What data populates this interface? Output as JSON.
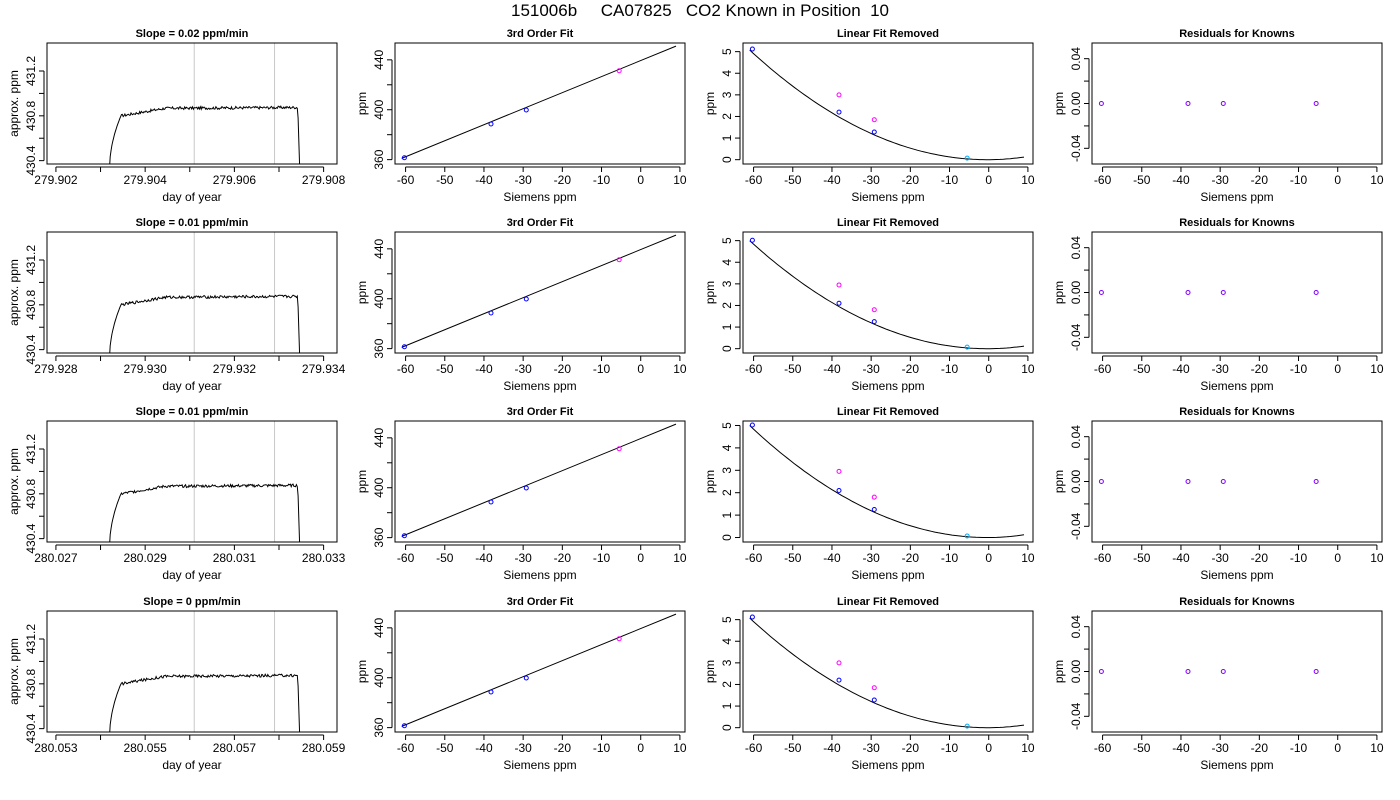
{
  "figure": {
    "title": "151006b     CA07825   CO2 Known in Position  10"
  },
  "chart_data": [
    {
      "type": "line",
      "panel": "time-series",
      "title": "Slope =  0.02  ppm/min",
      "xlabel": "day of year",
      "ylabel": "approx. ppm",
      "xlim": [
        279.9018,
        279.9083
      ],
      "ylim": [
        430.37,
        431.45
      ],
      "xticks": [
        279.902,
        279.903,
        279.904,
        279.905,
        279.906,
        279.907,
        279.908
      ],
      "xtick_labels": [
        "279.902",
        "",
        "279.904",
        "",
        "279.906",
        "",
        "279.908"
      ],
      "yticks": [
        430.4,
        430.6,
        430.8,
        431.0,
        431.2
      ],
      "ytick_labels": [
        "430.4",
        "",
        "430.8",
        "",
        "431.2"
      ],
      "vlines": [
        279.9051,
        279.9069
      ],
      "line_color": "#000000",
      "vline_color": "#c8c8c8"
    },
    {
      "type": "scatter",
      "panel": "fit",
      "title": "3rd Order Fit",
      "xlabel": "Siemens ppm",
      "ylabel": "ppm",
      "xlim": [
        -62.7,
        11.3
      ],
      "ylim": [
        356.5,
        453.5
      ],
      "xticks": [
        -60,
        -50,
        -40,
        -30,
        -20,
        -10,
        0,
        10
      ],
      "xtick_labels": [
        "-60",
        "-50",
        "-40",
        "-30",
        "-20",
        "-10",
        "0",
        "10"
      ],
      "yticks": [
        360,
        380,
        400,
        420,
        440
      ],
      "ytick_labels": [
        "360",
        "",
        "400",
        "",
        "440"
      ],
      "line": {
        "x": [
          -61,
          9
        ],
        "y": [
          361,
          451
        ]
      },
      "points": [
        {
          "x": -60.3,
          "y": 361.5,
          "color": "#0000ff"
        },
        {
          "x": -38.2,
          "y": 388.6,
          "color": "#0000ff"
        },
        {
          "x": -29.2,
          "y": 399.8,
          "color": "#0000ff"
        },
        {
          "x": -5.5,
          "y": 431.3,
          "color": "#ff00ff"
        }
      ]
    },
    {
      "type": "scatter",
      "panel": "linear-removed",
      "title": "Linear Fit Removed",
      "xlabel": "Siemens ppm",
      "ylabel": "ppm",
      "xlim": [
        -62.7,
        11.3
      ],
      "ylim": [
        -0.2,
        5.4
      ],
      "xticks": [
        -60,
        -50,
        -40,
        -30,
        -20,
        -10,
        0,
        10
      ],
      "xtick_labels": [
        "-60",
        "-50",
        "-40",
        "-30",
        "-20",
        "-10",
        "0",
        "10"
      ],
      "yticks": [
        0,
        1,
        2,
        3,
        4,
        5
      ],
      "ytick_labels": [
        "0",
        "1",
        "2",
        "3",
        "4",
        "5"
      ],
      "curve": {
        "x0": -61,
        "x1": 9,
        "a": 0.00138,
        "b": 0.001,
        "c": 0.0
      },
      "points": [
        {
          "x": -60.3,
          "y": 5.12,
          "color": "#0000ff"
        },
        {
          "x": -38.2,
          "y": 2.2,
          "color": "#0000ff"
        },
        {
          "x": -29.2,
          "y": 1.28,
          "color": "#0000ff"
        },
        {
          "x": -5.5,
          "y": 0.07,
          "color": "#00aaff"
        },
        {
          "x": -38.2,
          "y": 3.0,
          "color": "#ff00ff"
        },
        {
          "x": -29.2,
          "y": 1.85,
          "color": "#ff00ff"
        }
      ]
    },
    {
      "type": "scatter",
      "panel": "residuals",
      "title": "Residuals for Knowns",
      "xlabel": "Siemens ppm",
      "ylabel": "ppm",
      "xlim": [
        -62.7,
        11.3
      ],
      "ylim": [
        -0.054,
        0.054
      ],
      "xticks": [
        -60,
        -50,
        -40,
        -30,
        -20,
        -10,
        0,
        10
      ],
      "xtick_labels": [
        "-60",
        "-50",
        "-40",
        "-30",
        "-20",
        "-10",
        "0",
        "10"
      ],
      "yticks": [
        -0.04,
        -0.02,
        0.0,
        0.02,
        0.04
      ],
      "ytick_labels": [
        "-0.04",
        "",
        "0.00",
        "",
        "0.04"
      ],
      "points": [
        {
          "x": -60.3,
          "y": 0.0,
          "color": "#8000ff"
        },
        {
          "x": -38.2,
          "y": 0.0,
          "color": "#8000ff"
        },
        {
          "x": -29.2,
          "y": 0.0,
          "color": "#8000ff"
        },
        {
          "x": -5.5,
          "y": 0.0,
          "color": "#8000ff"
        }
      ]
    },
    {
      "type": "line",
      "panel": "time-series",
      "title": "Slope =  0.01  ppm/min",
      "xlabel": "day of year",
      "ylabel": "approx. ppm",
      "xlim": [
        279.9278,
        279.9343
      ],
      "ylim": [
        430.37,
        431.45
      ],
      "xticks": [
        279.928,
        279.929,
        279.93,
        279.931,
        279.932,
        279.933,
        279.934
      ],
      "xtick_labels": [
        "279.928",
        "",
        "279.930",
        "",
        "279.932",
        "",
        "279.934"
      ],
      "yticks": [
        430.4,
        430.6,
        430.8,
        431.0,
        431.2
      ],
      "ytick_labels": [
        "430.4",
        "",
        "430.8",
        "",
        "431.2"
      ],
      "vlines": [
        279.9311,
        279.9329
      ],
      "line_color": "#000000",
      "vline_color": "#c8c8c8"
    },
    {
      "type": "scatter",
      "panel": "fit",
      "title": "3rd Order Fit",
      "xlabel": "Siemens ppm",
      "ylabel": "ppm",
      "xlim": [
        -62.7,
        11.3
      ],
      "ylim": [
        356.5,
        453.5
      ],
      "xticks": [
        -60,
        -50,
        -40,
        -30,
        -20,
        -10,
        0,
        10
      ],
      "xtick_labels": [
        "-60",
        "-50",
        "-40",
        "-30",
        "-20",
        "-10",
        "0",
        "10"
      ],
      "yticks": [
        360,
        380,
        400,
        420,
        440
      ],
      "ytick_labels": [
        "360",
        "",
        "400",
        "",
        "440"
      ],
      "line": {
        "x": [
          -61,
          9
        ],
        "y": [
          361,
          451
        ]
      },
      "points": [
        {
          "x": -60.3,
          "y": 361.5,
          "color": "#0000ff"
        },
        {
          "x": -38.2,
          "y": 388.6,
          "color": "#0000ff"
        },
        {
          "x": -29.2,
          "y": 399.8,
          "color": "#0000ff"
        },
        {
          "x": -5.5,
          "y": 431.3,
          "color": "#ff00ff"
        }
      ]
    },
    {
      "type": "scatter",
      "panel": "linear-removed",
      "title": "Linear Fit Removed",
      "xlabel": "Siemens ppm",
      "ylabel": "ppm",
      "xlim": [
        -62.7,
        11.3
      ],
      "ylim": [
        -0.2,
        5.4
      ],
      "xticks": [
        -60,
        -50,
        -40,
        -30,
        -20,
        -10,
        0,
        10
      ],
      "xtick_labels": [
        "-60",
        "-50",
        "-40",
        "-30",
        "-20",
        "-10",
        "0",
        "10"
      ],
      "yticks": [
        0,
        1,
        2,
        3,
        4,
        5
      ],
      "ytick_labels": [
        "0",
        "1",
        "2",
        "3",
        "4",
        "5"
      ],
      "curve": {
        "x0": -61,
        "x1": 9,
        "a": 0.00136,
        "b": 0.001,
        "c": 0.0
      },
      "points": [
        {
          "x": -60.3,
          "y": 5.02,
          "color": "#0000ff"
        },
        {
          "x": -38.2,
          "y": 2.1,
          "color": "#0000ff"
        },
        {
          "x": -29.2,
          "y": 1.25,
          "color": "#0000ff"
        },
        {
          "x": -5.5,
          "y": 0.07,
          "color": "#00aaff"
        },
        {
          "x": -38.2,
          "y": 2.95,
          "color": "#ff00ff"
        },
        {
          "x": -29.2,
          "y": 1.8,
          "color": "#ff00ff"
        }
      ]
    },
    {
      "type": "scatter",
      "panel": "residuals",
      "title": "Residuals for Knowns",
      "xlabel": "Siemens ppm",
      "ylabel": "ppm",
      "xlim": [
        -62.7,
        11.3
      ],
      "ylim": [
        -0.054,
        0.054
      ],
      "xticks": [
        -60,
        -50,
        -40,
        -30,
        -20,
        -10,
        0,
        10
      ],
      "xtick_labels": [
        "-60",
        "-50",
        "-40",
        "-30",
        "-20",
        "-10",
        "0",
        "10"
      ],
      "yticks": [
        -0.04,
        -0.02,
        0.0,
        0.02,
        0.04
      ],
      "ytick_labels": [
        "-0.04",
        "",
        "0.00",
        "",
        "0.04"
      ],
      "points": [
        {
          "x": -60.3,
          "y": 0.0,
          "color": "#8000ff"
        },
        {
          "x": -38.2,
          "y": 0.0,
          "color": "#8000ff"
        },
        {
          "x": -29.2,
          "y": 0.0,
          "color": "#8000ff"
        },
        {
          "x": -5.5,
          "y": 0.0,
          "color": "#8000ff"
        }
      ]
    },
    {
      "type": "line",
      "panel": "time-series",
      "title": "Slope =  0.01  ppm/min",
      "xlabel": "day of year",
      "ylabel": "approx. ppm",
      "xlim": [
        280.0268,
        280.0333
      ],
      "ylim": [
        430.37,
        431.45
      ],
      "xticks": [
        280.027,
        280.028,
        280.029,
        280.03,
        280.031,
        280.032,
        280.033
      ],
      "xtick_labels": [
        "280.027",
        "",
        "280.029",
        "",
        "280.031",
        "",
        "280.033"
      ],
      "yticks": [
        430.4,
        430.6,
        430.8,
        431.0,
        431.2
      ],
      "ytick_labels": [
        "430.4",
        "",
        "430.8",
        "",
        "431.2"
      ],
      "vlines": [
        280.0301,
        280.0319
      ],
      "line_color": "#000000",
      "vline_color": "#c8c8c8"
    },
    {
      "type": "scatter",
      "panel": "fit",
      "title": "3rd Order Fit",
      "xlabel": "Siemens ppm",
      "ylabel": "ppm",
      "xlim": [
        -62.7,
        11.3
      ],
      "ylim": [
        356.5,
        453.5
      ],
      "xticks": [
        -60,
        -50,
        -40,
        -30,
        -20,
        -10,
        0,
        10
      ],
      "xtick_labels": [
        "-60",
        "-50",
        "-40",
        "-30",
        "-20",
        "-10",
        "0",
        "10"
      ],
      "yticks": [
        360,
        380,
        400,
        420,
        440
      ],
      "ytick_labels": [
        "360",
        "",
        "400",
        "",
        "440"
      ],
      "line": {
        "x": [
          -61,
          9
        ],
        "y": [
          361,
          451
        ]
      },
      "points": [
        {
          "x": -60.3,
          "y": 361.5,
          "color": "#0000ff"
        },
        {
          "x": -38.2,
          "y": 388.6,
          "color": "#0000ff"
        },
        {
          "x": -29.2,
          "y": 399.8,
          "color": "#0000ff"
        },
        {
          "x": -5.5,
          "y": 431.3,
          "color": "#ff00ff"
        }
      ]
    },
    {
      "type": "scatter",
      "panel": "linear-removed",
      "title": "Linear Fit Removed",
      "xlabel": "Siemens ppm",
      "ylabel": "ppm",
      "xlim": [
        -62.7,
        11.3
      ],
      "ylim": [
        -0.2,
        5.2
      ],
      "xticks": [
        -60,
        -50,
        -40,
        -30,
        -20,
        -10,
        0,
        10
      ],
      "xtick_labels": [
        "-60",
        "-50",
        "-40",
        "-30",
        "-20",
        "-10",
        "0",
        "10"
      ],
      "yticks": [
        0,
        1,
        2,
        3,
        4,
        5
      ],
      "ytick_labels": [
        "0",
        "1",
        "2",
        "3",
        "4",
        "5"
      ],
      "curve": {
        "x0": -61,
        "x1": 9,
        "a": 0.00136,
        "b": 0.001,
        "c": 0.0
      },
      "points": [
        {
          "x": -60.3,
          "y": 5.02,
          "color": "#0000ff"
        },
        {
          "x": -38.2,
          "y": 2.1,
          "color": "#0000ff"
        },
        {
          "x": -29.2,
          "y": 1.25,
          "color": "#0000ff"
        },
        {
          "x": -5.5,
          "y": 0.07,
          "color": "#00aaff"
        },
        {
          "x": -38.2,
          "y": 2.95,
          "color": "#ff00ff"
        },
        {
          "x": -29.2,
          "y": 1.8,
          "color": "#ff00ff"
        }
      ]
    },
    {
      "type": "scatter",
      "panel": "residuals",
      "title": "Residuals for Knowns",
      "xlabel": "Siemens ppm",
      "ylabel": "ppm",
      "xlim": [
        -62.7,
        11.3
      ],
      "ylim": [
        -0.054,
        0.054
      ],
      "xticks": [
        -60,
        -50,
        -40,
        -30,
        -20,
        -10,
        0,
        10
      ],
      "xtick_labels": [
        "-60",
        "-50",
        "-40",
        "-30",
        "-20",
        "-10",
        "0",
        "10"
      ],
      "yticks": [
        -0.04,
        -0.02,
        0.0,
        0.02,
        0.04
      ],
      "ytick_labels": [
        "-0.04",
        "",
        "0.00",
        "",
        "0.04"
      ],
      "points": [
        {
          "x": -60.3,
          "y": 0.0,
          "color": "#8000ff"
        },
        {
          "x": -38.2,
          "y": 0.0,
          "color": "#8000ff"
        },
        {
          "x": -29.2,
          "y": 0.0,
          "color": "#8000ff"
        },
        {
          "x": -5.5,
          "y": 0.0,
          "color": "#8000ff"
        }
      ]
    },
    {
      "type": "line",
      "panel": "time-series",
      "title": "Slope =  0  ppm/min",
      "xlabel": "day of year",
      "ylabel": "approx. ppm",
      "xlim": [
        280.0528,
        280.0593
      ],
      "ylim": [
        430.37,
        431.45
      ],
      "xticks": [
        280.053,
        280.054,
        280.055,
        280.056,
        280.057,
        280.058,
        280.059
      ],
      "xtick_labels": [
        "280.053",
        "",
        "280.055",
        "",
        "280.057",
        "",
        "280.059"
      ],
      "yticks": [
        430.4,
        430.6,
        430.8,
        431.0,
        431.2
      ],
      "ytick_labels": [
        "430.4",
        "",
        "430.8",
        "",
        "431.2"
      ],
      "vlines": [
        280.0561,
        280.0579
      ],
      "line_color": "#000000",
      "vline_color": "#c8c8c8"
    },
    {
      "type": "scatter",
      "panel": "fit",
      "title": "3rd Order Fit",
      "xlabel": "Siemens ppm",
      "ylabel": "ppm",
      "xlim": [
        -62.7,
        11.3
      ],
      "ylim": [
        356.5,
        453.5
      ],
      "xticks": [
        -60,
        -50,
        -40,
        -30,
        -20,
        -10,
        0,
        10
      ],
      "xtick_labels": [
        "-60",
        "-50",
        "-40",
        "-30",
        "-20",
        "-10",
        "0",
        "10"
      ],
      "yticks": [
        360,
        380,
        400,
        420,
        440
      ],
      "ytick_labels": [
        "360",
        "",
        "400",
        "",
        "440"
      ],
      "line": {
        "x": [
          -61,
          9
        ],
        "y": [
          361,
          451
        ]
      },
      "points": [
        {
          "x": -60.3,
          "y": 361.5,
          "color": "#0000ff"
        },
        {
          "x": -38.2,
          "y": 388.6,
          "color": "#0000ff"
        },
        {
          "x": -29.2,
          "y": 399.8,
          "color": "#0000ff"
        },
        {
          "x": -5.5,
          "y": 431.3,
          "color": "#ff00ff"
        }
      ]
    },
    {
      "type": "scatter",
      "panel": "linear-removed",
      "title": "Linear Fit Removed",
      "xlabel": "Siemens ppm",
      "ylabel": "ppm",
      "xlim": [
        -62.7,
        11.3
      ],
      "ylim": [
        -0.2,
        5.4
      ],
      "xticks": [
        -60,
        -50,
        -40,
        -30,
        -20,
        -10,
        0,
        10
      ],
      "xtick_labels": [
        "-60",
        "-50",
        "-40",
        "-30",
        "-20",
        "-10",
        "0",
        "10"
      ],
      "yticks": [
        0,
        1,
        2,
        3,
        4,
        5
      ],
      "ytick_labels": [
        "0",
        "1",
        "2",
        "3",
        "4",
        "5"
      ],
      "curve": {
        "x0": -61,
        "x1": 9,
        "a": 0.00138,
        "b": 0.001,
        "c": 0.0
      },
      "points": [
        {
          "x": -60.3,
          "y": 5.12,
          "color": "#0000ff"
        },
        {
          "x": -38.2,
          "y": 2.2,
          "color": "#0000ff"
        },
        {
          "x": -29.2,
          "y": 1.28,
          "color": "#0000ff"
        },
        {
          "x": -5.5,
          "y": 0.07,
          "color": "#00aaff"
        },
        {
          "x": -38.2,
          "y": 3.0,
          "color": "#ff00ff"
        },
        {
          "x": -29.2,
          "y": 1.85,
          "color": "#ff00ff"
        }
      ]
    },
    {
      "type": "scatter",
      "panel": "residuals",
      "title": "Residuals for Knowns",
      "xlabel": "Siemens ppm",
      "ylabel": "ppm",
      "xlim": [
        -62.7,
        11.3
      ],
      "ylim": [
        -0.054,
        0.054
      ],
      "xticks": [
        -60,
        -50,
        -40,
        -30,
        -20,
        -10,
        0,
        10
      ],
      "xtick_labels": [
        "-60",
        "-50",
        "-40",
        "-30",
        "-20",
        "-10",
        "0",
        "10"
      ],
      "yticks": [
        -0.04,
        -0.02,
        0.0,
        0.02,
        0.04
      ],
      "ytick_labels": [
        "-0.04",
        "",
        "0.00",
        "",
        "0.04"
      ],
      "points": [
        {
          "x": -60.3,
          "y": 0.0,
          "color": "#8000ff"
        },
        {
          "x": -38.2,
          "y": 0.0,
          "color": "#8000ff"
        },
        {
          "x": -29.2,
          "y": 0.0,
          "color": "#8000ff"
        },
        {
          "x": -5.5,
          "y": 0.0,
          "color": "#8000ff"
        }
      ]
    }
  ]
}
